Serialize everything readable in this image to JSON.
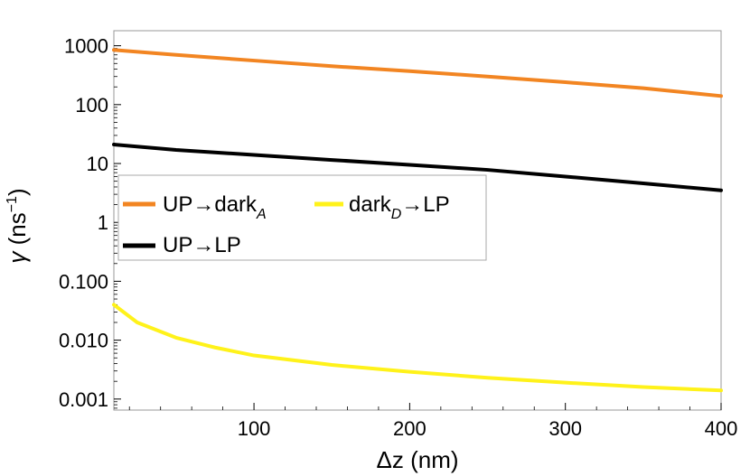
{
  "chart_data": {
    "type": "line",
    "xlabel": "Δz (nm)",
    "ylabel_parts": {
      "symbol": "γ",
      "unit_open": " (ns",
      "exponent": "−1",
      "unit_close": ")"
    },
    "xlim": [
      10,
      400
    ],
    "ylim": [
      0.00065,
      1800
    ],
    "yscale": "log",
    "x_ticks": [
      100,
      200,
      300,
      400
    ],
    "y_ticks": [
      {
        "value": 1000,
        "label": "1000"
      },
      {
        "value": 100,
        "label": "100"
      },
      {
        "value": 10,
        "label": "10"
      },
      {
        "value": 1,
        "label": "1"
      },
      {
        "value": 0.1,
        "label": "0.100"
      },
      {
        "value": 0.01,
        "label": "0.010"
      },
      {
        "value": 0.001,
        "label": "0.001"
      }
    ],
    "grid": false,
    "legend_position": "center-left",
    "series": [
      {
        "name": "UP→dark_A",
        "label_main": "UP→dark",
        "label_sub": "A",
        "color": "#F28522",
        "x": [
          10,
          50,
          100,
          150,
          200,
          250,
          300,
          350,
          400
        ],
        "y": [
          850,
          700,
          560,
          450,
          370,
          300,
          240,
          190,
          140
        ]
      },
      {
        "name": "dark_D→LP",
        "label_main": "dark",
        "label_sub": "D",
        "label_tail": "→LP",
        "color": "#FFF21A",
        "x": [
          10,
          25,
          50,
          75,
          100,
          150,
          200,
          250,
          300,
          350,
          400
        ],
        "y": [
          0.04,
          0.02,
          0.011,
          0.0075,
          0.0055,
          0.0038,
          0.0029,
          0.0023,
          0.0019,
          0.0016,
          0.0014
        ]
      },
      {
        "name": "UP→LP",
        "label_main": "UP→LP",
        "color": "#000000",
        "x": [
          10,
          50,
          100,
          150,
          200,
          250,
          300,
          350,
          400
        ],
        "y": [
          21,
          17,
          14,
          11.5,
          9.5,
          7.8,
          6.0,
          4.6,
          3.5
        ]
      }
    ]
  }
}
